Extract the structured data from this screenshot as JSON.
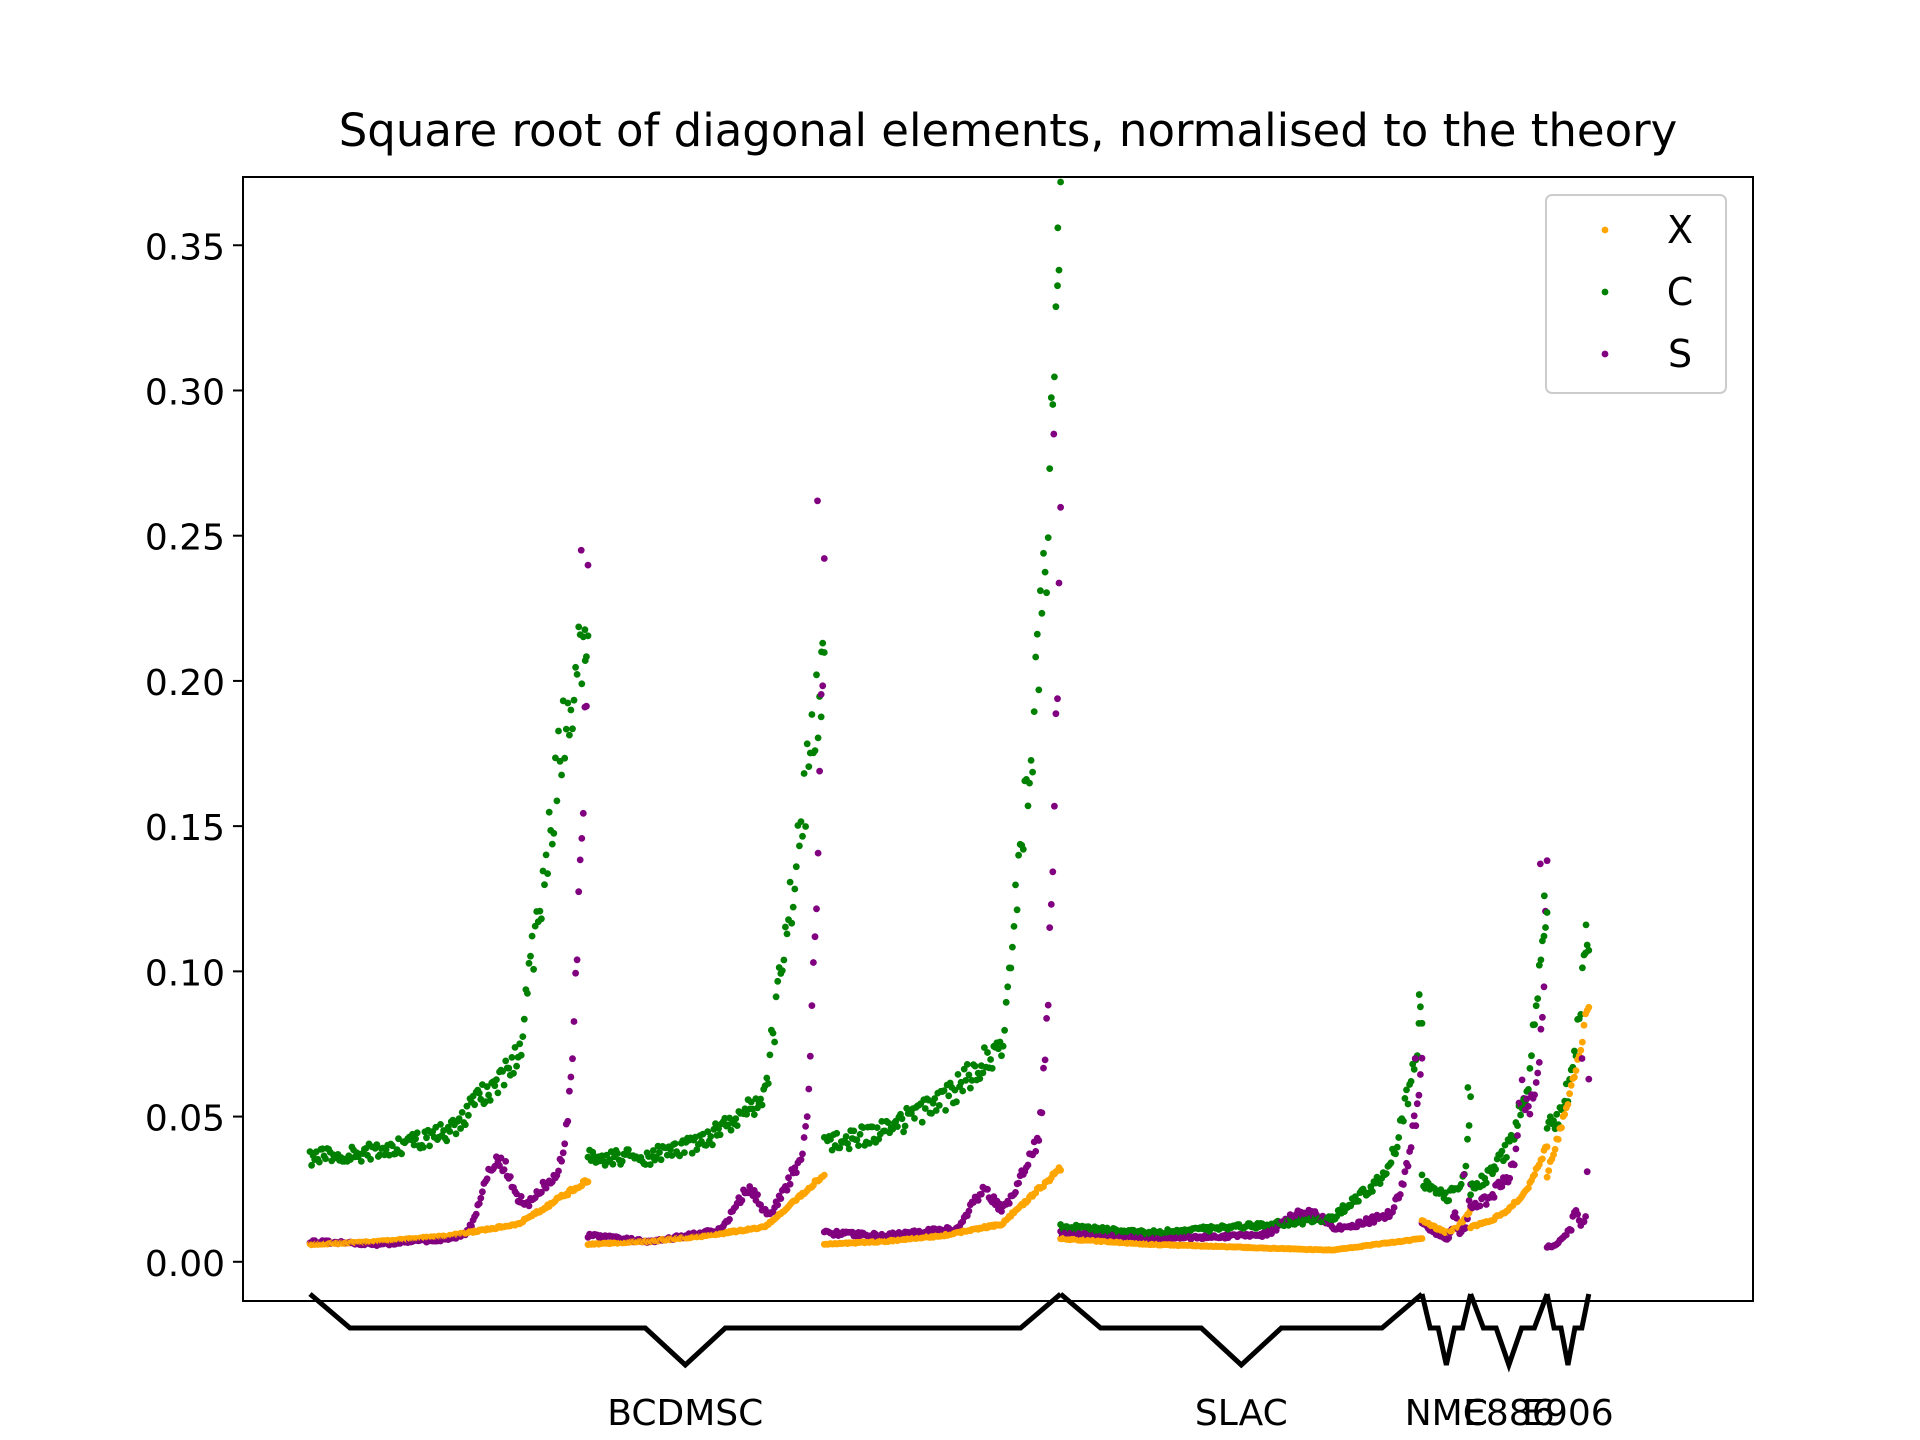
{
  "chart_data": {
    "type": "scatter",
    "title": "Square root of diagonal elements, normalised to the theory",
    "xlabel": "",
    "ylabel": "",
    "ylim": [
      -0.0135,
      0.3735
    ],
    "xlim": [
      0,
      1010
    ],
    "yticks": [
      "0.00",
      "0.05",
      "0.10",
      "0.15",
      "0.20",
      "0.25",
      "0.30",
      "0.35"
    ],
    "ytick_values": [
      0,
      0.05,
      0.1,
      0.15,
      0.2,
      0.25,
      0.3,
      0.35
    ],
    "grid": false,
    "legend": {
      "position": "top-right",
      "entries": [
        "X",
        "C",
        "S"
      ]
    },
    "colors": {
      "X": "#ffa500",
      "C": "#008000",
      "S": "#800080",
      "bracket": "#000000"
    },
    "brackets": [
      {
        "label": "BCDMSC",
        "start": 0,
        "end": 540
      },
      {
        "label": "SLAC",
        "start": 540,
        "end": 800
      },
      {
        "label": "NMC",
        "start": 800,
        "end": 835
      },
      {
        "label": "E886",
        "start": 835,
        "end": 890
      },
      {
        "label": "E906",
        "start": 890,
        "end": 920
      }
    ],
    "blocks": [
      {
        "start": 0,
        "end": 200,
        "X": [
          0.006,
          0.007,
          0.009,
          0.013,
          0.028
        ],
        "C": [
          0.036,
          0.038,
          0.045,
          0.07,
          0.245
        ],
        "S": [
          0.007,
          0.006,
          0.008,
          0.015,
          0.045
        ],
        "S_hump": 0.035,
        "C_peak": 0.207,
        "S_peak": 0.245
      },
      {
        "start": 200,
        "end": 370,
        "X": [
          0.006,
          0.007,
          0.009,
          0.012,
          0.03
        ],
        "C": [
          0.036,
          0.036,
          0.042,
          0.058,
          0.21
        ],
        "S": [
          0.009,
          0.007,
          0.01,
          0.013,
          0.05
        ],
        "S_hump": 0.02,
        "C_peak": 0.21,
        "S_peak": 0.262
      },
      {
        "start": 370,
        "end": 540,
        "X": [
          0.006,
          0.007,
          0.009,
          0.013,
          0.032
        ],
        "C": [
          0.04,
          0.045,
          0.055,
          0.075,
          0.28
        ],
        "S": [
          0.01,
          0.009,
          0.011,
          0.014,
          0.06
        ],
        "S_hump": 0.018,
        "C_peak": 0.356,
        "S_peak": 0.285
      },
      {
        "start": 540,
        "end": 800,
        "X": [
          0.008,
          0.006,
          0.005,
          0.004,
          0.008
        ],
        "C": [
          0.012,
          0.01,
          0.012,
          0.015,
          0.04
        ],
        "S": [
          0.01,
          0.008,
          0.009,
          0.01,
          0.02
        ],
        "S_hump": 0.012,
        "C_peak": 0.092,
        "S_peak": 0.07
      },
      {
        "start": 800,
        "end": 835,
        "X": [
          0.014,
          0.012,
          0.01,
          0.012,
          0.018
        ],
        "C": [
          0.028,
          0.025,
          0.022,
          0.026,
          0.038
        ],
        "S": [
          0.013,
          0.01,
          0.008,
          0.009,
          0.014
        ],
        "S_hump": 0.012,
        "C_peak": 0.06,
        "S_peak": 0.03
      },
      {
        "start": 835,
        "end": 890,
        "X": [
          0.012,
          0.014,
          0.018,
          0.025,
          0.04
        ],
        "C": [
          0.025,
          0.03,
          0.04,
          0.06,
          0.126
        ],
        "S": [
          0.018,
          0.022,
          0.03,
          0.045,
          0.09
        ],
        "S_hump": 0.03,
        "C_peak": 0.126,
        "S_peak": 0.137
      },
      {
        "start": 890,
        "end": 920,
        "X": [
          0.03,
          0.042,
          0.055,
          0.07,
          0.09
        ],
        "C": [
          0.045,
          0.05,
          0.06,
          0.08,
          0.116
        ],
        "S": [
          0.005,
          0.006,
          0.01,
          0.013,
          0.014
        ],
        "S_hump": 0.01,
        "C_peak": 0.116,
        "S_peak": 0.07
      }
    ]
  }
}
